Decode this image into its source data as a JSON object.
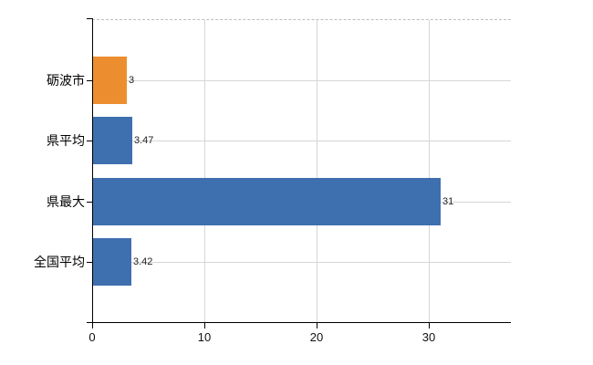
{
  "chart_data": {
    "type": "bar",
    "orientation": "horizontal",
    "title": "",
    "categories": [
      "砺波市",
      "県平均",
      "県最大",
      "全国平均"
    ],
    "values": [
      3,
      3.47,
      31,
      3.42
    ],
    "value_labels": [
      "3",
      "3.47",
      "31",
      "3.42"
    ],
    "bar_colors": [
      "#EC8E2F",
      "#3E6FAF",
      "#3E6FAF",
      "#3E6FAF"
    ],
    "x_ticks": [
      0,
      10,
      20,
      30
    ],
    "x_tick_labels": [
      "0",
      "10",
      "20",
      "30"
    ],
    "xlim": [
      0,
      37.3
    ],
    "ylabel": "",
    "xlabel": "",
    "legend": "none",
    "grid": {
      "vertical_at_ticks": true,
      "horizontal_at_row_centers": true,
      "top_border_style": "dashed"
    }
  },
  "colors": {
    "highlight_bar": "#EC8E2F",
    "default_bar": "#3E6FAF",
    "gridline": "#D6D6D6",
    "row_line": "#D5D8D3",
    "top_border": "#BDBDBD",
    "axis": "#000000",
    "category_text": "#000000",
    "value_text": "#222222",
    "tick_text": "#111111",
    "background": "#FFFFFF"
  }
}
